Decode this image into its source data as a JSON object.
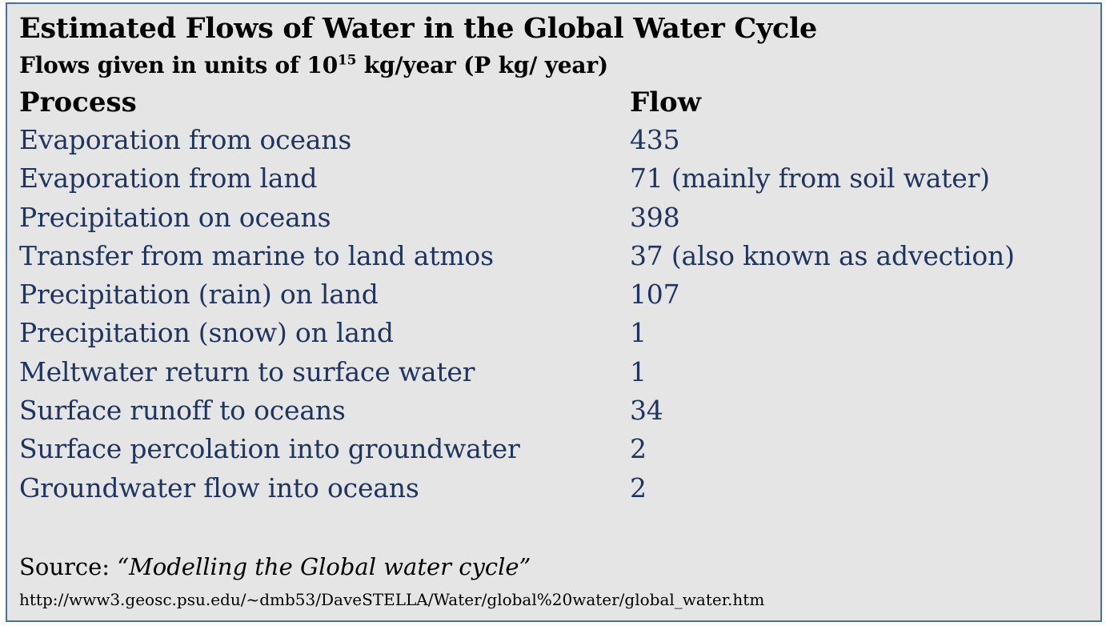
{
  "title": "Estimated Flows of Water in the Global Water Cycle",
  "subtitle": {
    "prefix": "Flows given in units of 10",
    "exponent": "15",
    "suffix": " kg/year (P kg/ year)"
  },
  "columns": {
    "process": "Process",
    "flow": "Flow"
  },
  "rows": [
    {
      "process": "Evaporation from oceans",
      "flow": "435"
    },
    {
      "process": "Evaporation from land",
      "flow": "71 (mainly from soil water)"
    },
    {
      "process": "Precipitation on oceans",
      "flow": "398"
    },
    {
      "process": "Transfer from marine to land atmos",
      "flow": "37 (also known as advection)"
    },
    {
      "process": "Precipitation (rain) on land",
      "flow": "107"
    },
    {
      "process": "Precipitation (snow) on land",
      "flow": "1"
    },
    {
      "process": "Meltwater return to surface water",
      "flow": "1"
    },
    {
      "process": "Surface runoff to oceans",
      "flow": "34"
    },
    {
      "process": "Surface percolation into groundwater",
      "flow": "2"
    },
    {
      "process": "Groundwater flow into oceans",
      "flow": "2"
    }
  ],
  "source": {
    "label": "Source: ",
    "work": "“Modelling the Global water cycle”",
    "url": "http://www3.geosc.psu.edu/~dmb53/DaveSTELLA/Water/global%20water/global_water.htm"
  },
  "colors": {
    "background": "#e5e5e5",
    "border": "#4a6ea8",
    "body_text": "#1f3560",
    "heading_text": "#000000"
  }
}
